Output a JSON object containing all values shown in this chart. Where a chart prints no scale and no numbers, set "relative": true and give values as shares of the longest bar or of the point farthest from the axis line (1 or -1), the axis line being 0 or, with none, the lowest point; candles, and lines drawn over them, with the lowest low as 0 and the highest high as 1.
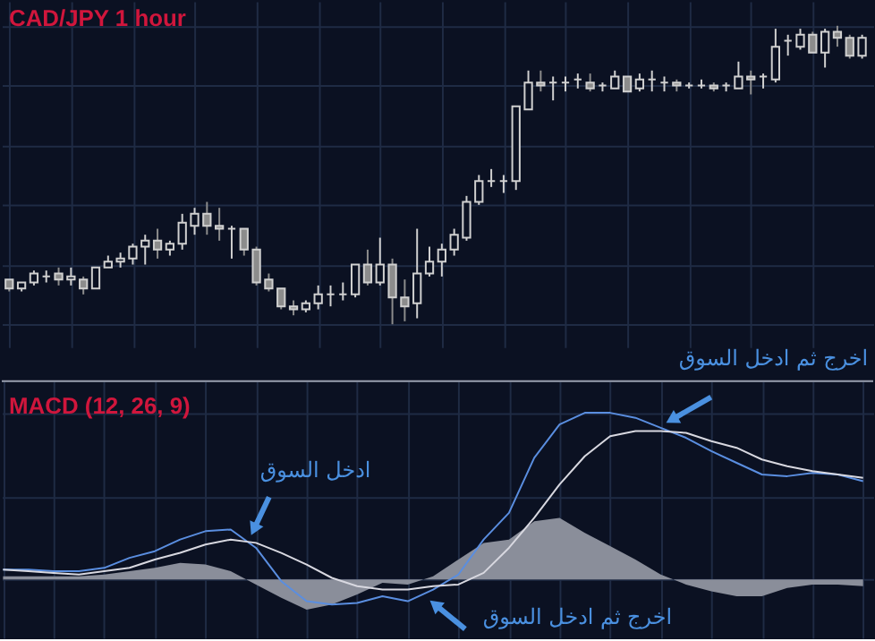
{
  "chart_data": [
    {
      "type": "candlestick",
      "title": "CAD/JPY 1 hour",
      "relative": true,
      "grid": true,
      "categories": [
        null,
        null,
        null,
        null,
        null,
        null,
        null,
        null,
        null,
        null,
        null,
        null,
        null,
        null,
        null,
        null,
        null,
        null,
        null,
        null,
        null,
        null,
        null,
        null,
        null,
        null,
        null,
        null,
        null,
        null,
        null,
        null,
        null,
        null,
        null,
        null,
        null,
        null,
        null,
        null,
        null,
        null,
        null,
        null,
        null,
        null,
        null,
        null,
        null,
        null,
        null,
        null,
        null,
        null,
        null,
        null,
        null,
        null,
        null,
        null,
        null,
        null,
        null,
        null,
        null,
        null,
        null,
        null,
        null,
        null
      ],
      "ohlc": [
        [
          0.15,
          0.15,
          0.11,
          0.12
        ],
        [
          0.12,
          0.14,
          0.11,
          0.14
        ],
        [
          0.14,
          0.18,
          0.13,
          0.17
        ],
        [
          0.16,
          0.18,
          0.14,
          0.16
        ],
        [
          0.17,
          0.19,
          0.13,
          0.15
        ],
        [
          0.15,
          0.19,
          0.13,
          0.16
        ],
        [
          0.15,
          0.16,
          0.1,
          0.12
        ],
        [
          0.12,
          0.19,
          0.12,
          0.19
        ],
        [
          0.19,
          0.23,
          0.19,
          0.21
        ],
        [
          0.21,
          0.24,
          0.19,
          0.22
        ],
        [
          0.22,
          0.27,
          0.2,
          0.26
        ],
        [
          0.26,
          0.3,
          0.2,
          0.28
        ],
        [
          0.28,
          0.32,
          0.22,
          0.25
        ],
        [
          0.25,
          0.28,
          0.23,
          0.27
        ],
        [
          0.27,
          0.37,
          0.25,
          0.34
        ],
        [
          0.33,
          0.39,
          0.3,
          0.37
        ],
        [
          0.37,
          0.41,
          0.3,
          0.33
        ],
        [
          0.33,
          0.39,
          0.28,
          0.32
        ],
        [
          0.32,
          0.33,
          0.22,
          0.32
        ],
        [
          0.32,
          0.32,
          0.23,
          0.25
        ],
        [
          0.25,
          0.26,
          0.13,
          0.14
        ],
        [
          0.15,
          0.17,
          0.11,
          0.12
        ],
        [
          0.12,
          0.12,
          0.05,
          0.06
        ],
        [
          0.06,
          0.08,
          0.03,
          0.05
        ],
        [
          0.05,
          0.08,
          0.04,
          0.07
        ],
        [
          0.07,
          0.13,
          0.05,
          0.1
        ],
        [
          0.1,
          0.13,
          0.06,
          0.1
        ],
        [
          0.1,
          0.14,
          0.08,
          0.1
        ],
        [
          0.1,
          0.2,
          0.09,
          0.2
        ],
        [
          0.2,
          0.25,
          0.13,
          0.14
        ],
        [
          0.14,
          0.29,
          0.13,
          0.2
        ],
        [
          0.2,
          0.22,
          0.0,
          0.09
        ],
        [
          0.09,
          0.15,
          0.01,
          0.06
        ],
        [
          0.07,
          0.32,
          0.02,
          0.17
        ],
        [
          0.17,
          0.26,
          0.16,
          0.21
        ],
        [
          0.21,
          0.27,
          0.16,
          0.25
        ],
        [
          0.25,
          0.32,
          0.23,
          0.3
        ],
        [
          0.29,
          0.43,
          0.28,
          0.41
        ],
        [
          0.41,
          0.5,
          0.4,
          0.48
        ],
        [
          0.48,
          0.52,
          0.46,
          0.48
        ],
        [
          0.48,
          0.5,
          0.44,
          0.48
        ],
        [
          0.48,
          0.73,
          0.45,
          0.73
        ],
        [
          0.72,
          0.85,
          0.72,
          0.81
        ],
        [
          0.81,
          0.85,
          0.78,
          0.8
        ],
        [
          0.81,
          0.83,
          0.75,
          0.81
        ],
        [
          0.81,
          0.83,
          0.78,
          0.81
        ],
        [
          0.82,
          0.84,
          0.79,
          0.82
        ],
        [
          0.81,
          0.84,
          0.78,
          0.79
        ],
        [
          0.8,
          0.81,
          0.78,
          0.8
        ],
        [
          0.79,
          0.85,
          0.79,
          0.83
        ],
        [
          0.83,
          0.83,
          0.78,
          0.78
        ],
        [
          0.79,
          0.84,
          0.78,
          0.82
        ],
        [
          0.82,
          0.85,
          0.78,
          0.82
        ],
        [
          0.81,
          0.83,
          0.78,
          0.81
        ],
        [
          0.81,
          0.82,
          0.78,
          0.8
        ],
        [
          0.8,
          0.81,
          0.79,
          0.8
        ],
        [
          0.8,
          0.82,
          0.79,
          0.8
        ],
        [
          0.8,
          0.81,
          0.78,
          0.79
        ],
        [
          0.8,
          0.81,
          0.78,
          0.8
        ],
        [
          0.79,
          0.88,
          0.79,
          0.83
        ],
        [
          0.83,
          0.85,
          0.77,
          0.82
        ],
        [
          0.83,
          0.84,
          0.79,
          0.83
        ],
        [
          0.82,
          0.99,
          0.81,
          0.93
        ],
        [
          0.95,
          0.97,
          0.9,
          0.95
        ],
        [
          0.93,
          0.99,
          0.92,
          0.97
        ],
        [
          0.97,
          0.98,
          0.91,
          0.91
        ],
        [
          0.91,
          0.99,
          0.86,
          0.98
        ],
        [
          0.98,
          1.0,
          0.93,
          0.96
        ],
        [
          0.96,
          0.97,
          0.89,
          0.9
        ],
        [
          0.9,
          0.97,
          0.89,
          0.96
        ]
      ],
      "colors": [
        "#8c8c8c",
        "#d0d0d0",
        "#d0d0d0",
        "#d0d0d0",
        "#8c8c8c",
        "#d0d0d0",
        "#8c8c8c",
        "#d0d0d0",
        "#d0d0d0",
        "#d0d0d0",
        "#d0d0d0",
        "#d0d0d0",
        "#8c8c8c",
        "#d0d0d0",
        "#d0d0d0",
        "#d0d0d0",
        "#8c8c8c",
        "#8c8c8c",
        "#d0d0d0",
        "#8c8c8c",
        "#8c8c8c",
        "#8c8c8c",
        "#8c8c8c",
        "#8c8c8c",
        "#d0d0d0",
        "#d0d0d0",
        "#d0d0d0",
        "#d0d0d0",
        "#d0d0d0",
        "#8c8c8c",
        "#d0d0d0",
        "#8c8c8c",
        "#8c8c8c",
        "#d0d0d0",
        "#d0d0d0",
        "#d0d0d0",
        "#d0d0d0",
        "#d0d0d0",
        "#d0d0d0",
        "#d0d0d0",
        "#d0d0d0",
        "#d0d0d0",
        "#d0d0d0",
        "#8c8c8c",
        "#d0d0d0",
        "#d0d0d0",
        "#d0d0d0",
        "#8c8c8c",
        "#d0d0d0",
        "#d0d0d0",
        "#8c8c8c",
        "#d0d0d0",
        "#d0d0d0",
        "#d0d0d0",
        "#8c8c8c",
        "#d0d0d0",
        "#d0d0d0",
        "#8c8c8c",
        "#d0d0d0",
        "#d0d0d0",
        "#8c8c8c",
        "#d0d0d0",
        "#d0d0d0",
        "#d0d0d0",
        "#d0d0d0",
        "#8c8c8c",
        "#d0d0d0",
        "#8c8c8c",
        "#8c8c8c",
        "#d0d0d0"
      ]
    },
    {
      "type": "line",
      "title": "MACD (12, 26, 9)",
      "relative": true,
      "grid": true,
      "categories": [
        null,
        null,
        null,
        null,
        null,
        null,
        null,
        null,
        null,
        null,
        null,
        null,
        null,
        null,
        null,
        null,
        null,
        null,
        null,
        null,
        null,
        null,
        null,
        null,
        null,
        null,
        null,
        null,
        null,
        null,
        null,
        null,
        null,
        null,
        null
      ],
      "series": [
        {
          "type": "area",
          "color": "#8a8e9a",
          "values": [
            0.02,
            0.02,
            0.02,
            0.02,
            0.03,
            0.05,
            0.07,
            0.1,
            0.09,
            0.05,
            -0.03,
            -0.11,
            -0.18,
            -0.15,
            -0.09,
            -0.02,
            -0.03,
            0.02,
            0.12,
            0.22,
            0.24,
            0.35,
            0.37,
            0.28,
            0.2,
            0.12,
            0.03,
            -0.03,
            -0.07,
            -0.1,
            -0.1,
            -0.05,
            -0.03,
            -0.03,
            -0.04
          ]
        },
        {
          "color": "#5a8ee0",
          "values": [
            0.06,
            0.06,
            0.05,
            0.05,
            0.07,
            0.13,
            0.17,
            0.24,
            0.29,
            0.3,
            0.19,
            -0.01,
            -0.13,
            -0.15,
            -0.14,
            -0.1,
            -0.13,
            -0.06,
            0.03,
            0.24,
            0.4,
            0.73,
            0.93,
            1.0,
            1.0,
            0.97,
            0.91,
            0.85,
            0.77,
            0.7,
            0.63,
            0.62,
            0.64,
            0.63,
            0.59
          ]
        },
        {
          "color": "#d8d8e0",
          "values": [
            0.06,
            0.05,
            0.04,
            0.03,
            0.05,
            0.07,
            0.12,
            0.16,
            0.21,
            0.24,
            0.22,
            0.16,
            0.09,
            0.01,
            -0.04,
            -0.06,
            -0.06,
            -0.04,
            -0.03,
            0.04,
            0.19,
            0.37,
            0.57,
            0.74,
            0.86,
            0.89,
            0.89,
            0.88,
            0.83,
            0.79,
            0.72,
            0.68,
            0.65,
            0.63,
            0.61
          ]
        }
      ],
      "annotations": [
        "ادخل السوق",
        "اخرج ثم ادخل السوق",
        "اخرج ثم ادخل السوق"
      ]
    }
  ]
}
